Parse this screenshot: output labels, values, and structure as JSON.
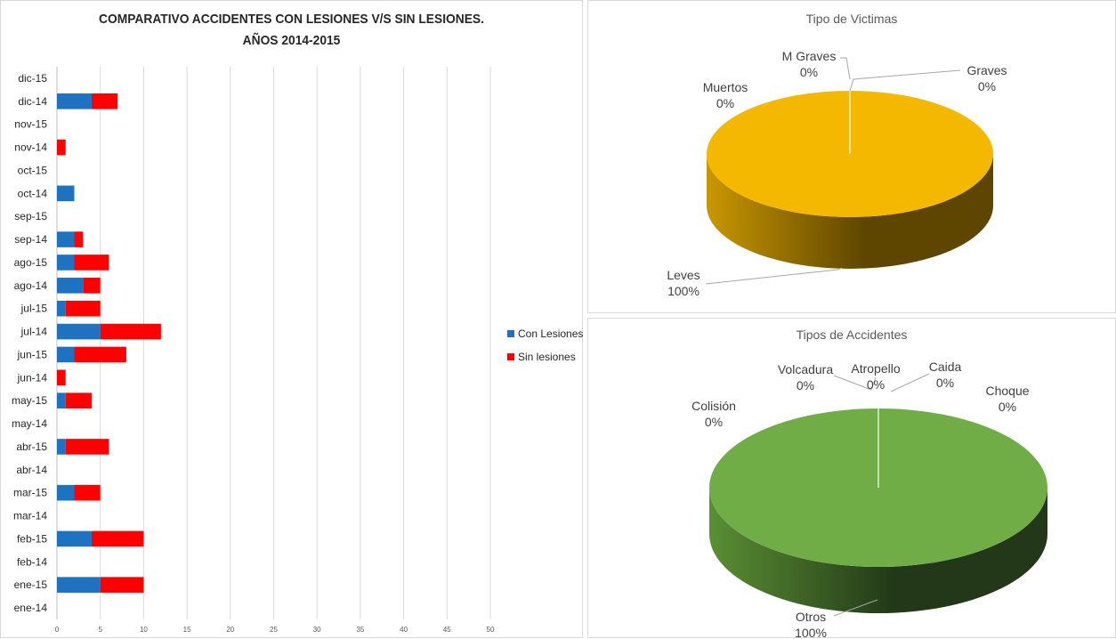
{
  "chart_data": [
    {
      "type": "bar",
      "orientation": "horizontal",
      "stacked": true,
      "title": [
        "COMPARATIVO ACCIDENTES CON LESIONES  V/S SIN LESIONES.",
        "AÑOS 2014-2015"
      ],
      "categories": [
        "dic-15",
        "dic-14",
        "nov-15",
        "nov-14",
        "oct-15",
        "oct-14",
        "sep-15",
        "sep-14",
        "ago-15",
        "ago-14",
        "jul-15",
        "jul-14",
        "jun-15",
        "jun-14",
        "may-15",
        "may-14",
        "abr-15",
        "abr-14",
        "mar-15",
        "mar-14",
        "feb-15",
        "feb-14",
        "ene-15",
        "ene-14"
      ],
      "series": [
        {
          "name": "Con Lesiones",
          "color": "#1f72c0",
          "values": [
            0,
            4,
            0,
            0,
            0,
            2,
            0,
            2,
            2,
            3,
            1,
            5,
            2,
            0,
            1,
            0,
            1,
            0,
            2,
            0,
            4,
            0,
            5,
            0
          ]
        },
        {
          "name": "Sin lesiones",
          "color": "#ff0000",
          "values": [
            0,
            3,
            0,
            1,
            0,
            0,
            0,
            1,
            4,
            2,
            4,
            7,
            6,
            1,
            3,
            0,
            5,
            0,
            3,
            0,
            6,
            0,
            5,
            0
          ]
        }
      ],
      "xlim": [
        0,
        50
      ],
      "xticks": [
        0,
        5,
        10,
        15,
        20,
        25,
        30,
        35,
        40,
        45,
        50
      ],
      "grid": true,
      "legend": "right"
    },
    {
      "type": "pie",
      "style": "3d",
      "title": "Tipo de  Victimas",
      "slices": [
        {
          "name": "Leves",
          "value": 100,
          "label": "100%",
          "color": "#f5b800"
        },
        {
          "name": "Graves",
          "value": 0,
          "label": "0%"
        },
        {
          "name": "M Graves",
          "value": 0,
          "label": "0%"
        },
        {
          "name": "Muertos",
          "value": 0,
          "label": "0%"
        }
      ]
    },
    {
      "type": "pie",
      "style": "3d",
      "title": "Tipos de Accidentes",
      "slices": [
        {
          "name": "Otros",
          "value": 100,
          "label": "100%",
          "color": "#70ad47"
        },
        {
          "name": "Choque",
          "value": 0,
          "label": "0%"
        },
        {
          "name": "Caida",
          "value": 0,
          "label": "0%"
        },
        {
          "name": "Atropello",
          "value": 0,
          "label": "0%"
        },
        {
          "name": "Volcadura",
          "value": 0,
          "label": "0%"
        },
        {
          "name": "Colisión",
          "value": 0,
          "label": "0%"
        }
      ]
    }
  ]
}
